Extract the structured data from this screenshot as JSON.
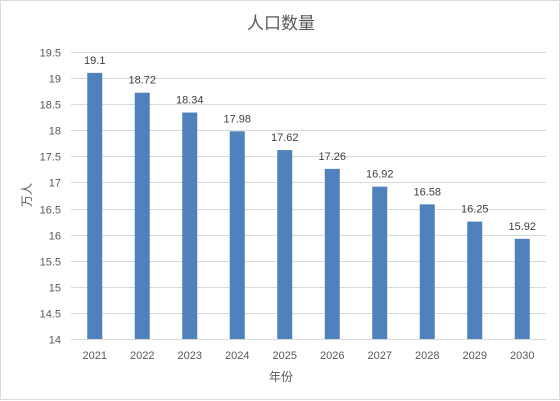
{
  "chart_data": {
    "type": "bar",
    "title": "人口数量",
    "xlabel": "年份",
    "ylabel": "万人",
    "categories": [
      "2021",
      "2022",
      "2023",
      "2024",
      "2025",
      "2026",
      "2027",
      "2028",
      "2029",
      "2030"
    ],
    "values": [
      19.1,
      18.72,
      18.34,
      17.98,
      17.62,
      17.26,
      16.92,
      16.58,
      16.25,
      15.92
    ],
    "value_labels": [
      "19.1",
      "18.72",
      "18.34",
      "17.98",
      "17.62",
      "17.26",
      "16.92",
      "16.58",
      "16.25",
      "15.92"
    ],
    "ylim": [
      14,
      19.5
    ],
    "yticks": [
      "14",
      "14.5",
      "15",
      "15.5",
      "16",
      "16.5",
      "17",
      "17.5",
      "18",
      "18.5",
      "19",
      "19.5"
    ],
    "grid": true,
    "legend": "none",
    "bar_color": "#4f81bd"
  }
}
